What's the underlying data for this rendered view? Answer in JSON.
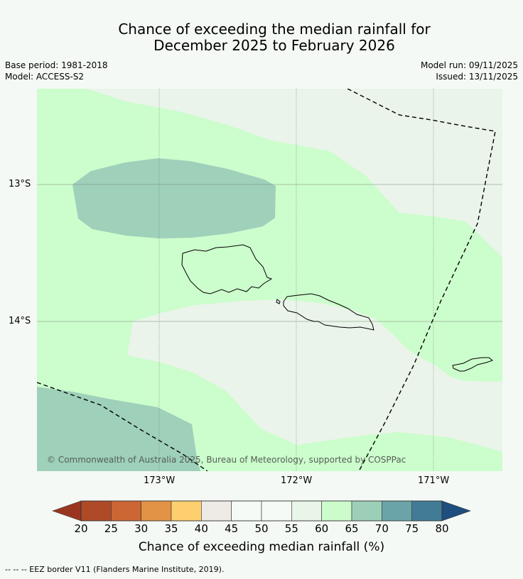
{
  "title": {
    "line1": "Chance of exceeding the median rainfall for",
    "line2": "December 2025 to February 2026"
  },
  "meta": {
    "base_period": "Base period: 1981-2018",
    "model": "Model: ACCESS-S2",
    "model_run": "Model run: 09/11/2025",
    "issued": "Issued: 13/11/2025"
  },
  "map": {
    "lat_labels": [
      "13°S",
      "14°S"
    ],
    "lon_labels": [
      "173°W",
      "172°W",
      "171°W"
    ],
    "copyright": "© Commonwealth of Australia 2025, Bureau of Meteorology, supported by COSPPac",
    "colors": {
      "prob_45_55": "#eaf4ea",
      "prob_60_65": "#ccfdcc",
      "prob_65_70": "#9ed0ba",
      "grid": "#7a8a7a",
      "eez": "#000000"
    }
  },
  "colorbar": {
    "ticks": [
      "20",
      "25",
      "30",
      "35",
      "40",
      "45",
      "50",
      "55",
      "60",
      "65",
      "70",
      "75",
      "80"
    ],
    "colors": [
      "#ae4a27",
      "#cc6634",
      "#e29345",
      "#fdcf6e",
      "#eeebe6",
      "#f6faf6",
      "#f6faf6",
      "#e8f5e8",
      "#ccfccc",
      "#9dcfb8",
      "#6ba4a8",
      "#427b96"
    ],
    "low_extend_color": "#9a3620",
    "high_extend_color": "#1e4e7e",
    "label": "Chance of exceeding median rainfall (%)"
  },
  "footnote": "--  --  -- EEZ border V11 (Flanders Marine Institute, 2019)."
}
